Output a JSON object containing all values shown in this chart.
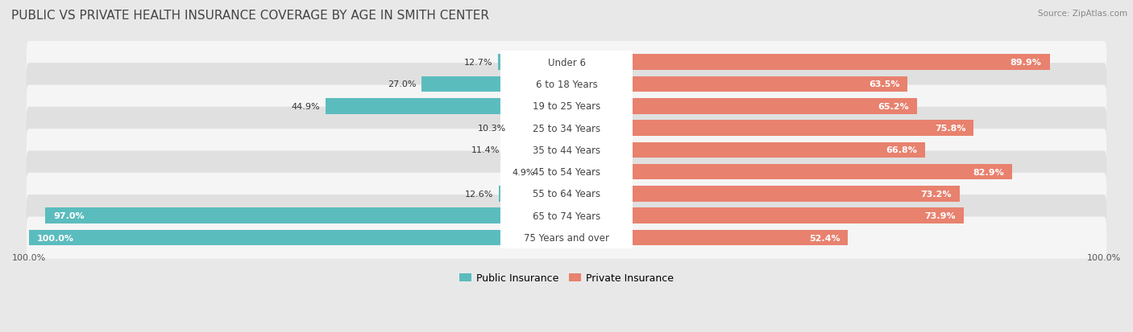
{
  "title": "PUBLIC VS PRIVATE HEALTH INSURANCE COVERAGE BY AGE IN SMITH CENTER",
  "source": "Source: ZipAtlas.com",
  "categories": [
    "Under 6",
    "6 to 18 Years",
    "19 to 25 Years",
    "25 to 34 Years",
    "35 to 44 Years",
    "45 to 54 Years",
    "55 to 64 Years",
    "65 to 74 Years",
    "75 Years and over"
  ],
  "public_values": [
    12.7,
    27.0,
    44.9,
    10.3,
    11.4,
    4.9,
    12.6,
    97.0,
    100.0
  ],
  "private_values": [
    89.9,
    63.5,
    65.2,
    75.8,
    66.8,
    82.9,
    73.2,
    73.9,
    52.4
  ],
  "public_color": "#5bbcbe",
  "private_color": "#e8816e",
  "background_color": "#e8e8e8",
  "row_bg_light": "#f5f5f5",
  "row_bg_dark": "#e0e0e0",
  "max_value": 100.0,
  "title_fontsize": 11,
  "label_fontsize": 8.5,
  "value_fontsize": 8.0,
  "tick_fontsize": 8,
  "legend_fontsize": 9
}
